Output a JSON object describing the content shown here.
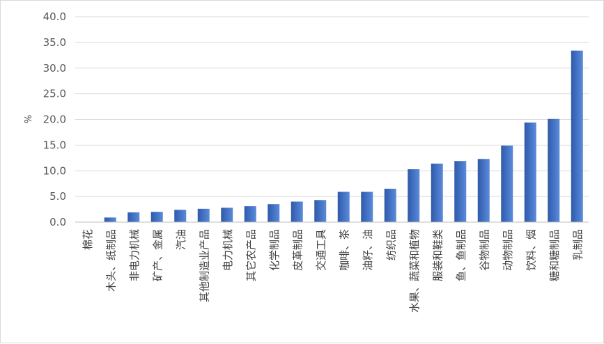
{
  "chart_data": {
    "type": "bar",
    "ylabel": "%",
    "ylim": [
      0,
      40
    ],
    "yticks": [
      "0.0",
      "5.0",
      "10.0",
      "15.0",
      "20.0",
      "25.0",
      "30.0",
      "35.0",
      "40.0"
    ],
    "grid": true,
    "legend": "none",
    "bar_color": "#4472c4",
    "categories": [
      "棉花",
      "木头、纸制品",
      "非电力机械",
      "矿产、金属",
      "汽油",
      "其他制造业产品",
      "电力机械",
      "其它农产品",
      "化学制品",
      "皮革制品",
      "交通工具",
      "咖啡、茶",
      "油籽、油",
      "纺织品",
      "水果、蔬菜和植物",
      "服装和鞋类",
      "鱼、鱼制品",
      "谷物制品",
      "动物制品",
      "饮料、烟",
      "糖和糖制品",
      "乳制品"
    ],
    "values": [
      0.0,
      0.9,
      1.9,
      2.0,
      2.4,
      2.6,
      2.8,
      3.1,
      3.5,
      4.0,
      4.3,
      5.9,
      5.9,
      6.5,
      10.3,
      11.4,
      11.9,
      12.3,
      14.9,
      19.4,
      20.1,
      33.4
    ]
  }
}
